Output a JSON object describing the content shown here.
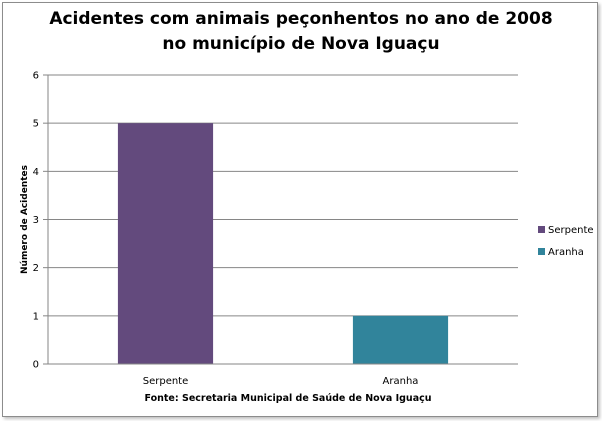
{
  "chart_data": {
    "type": "bar",
    "title": [
      "Acidentes com animais peçonhentos no ano de 2008",
      "no município de Nova Iguaçu"
    ],
    "categories": [
      "Serpente",
      "Aranha"
    ],
    "values": [
      5,
      1
    ],
    "colors": [
      "#634a7d",
      "#31849b"
    ],
    "ylabel": "Número de Acidentes",
    "xlabel": "Fonte: Secretaria Municipal  de Saúde de Nova Iguaçu",
    "ylim": [
      0,
      6
    ],
    "yticks": [
      0,
      1,
      2,
      3,
      4,
      5,
      6
    ],
    "grid": true,
    "legend": {
      "position": "right",
      "entries": [
        {
          "label": "Serpente",
          "color": "#634a7d"
        },
        {
          "label": "Aranha",
          "color": "#31849b"
        }
      ]
    }
  }
}
